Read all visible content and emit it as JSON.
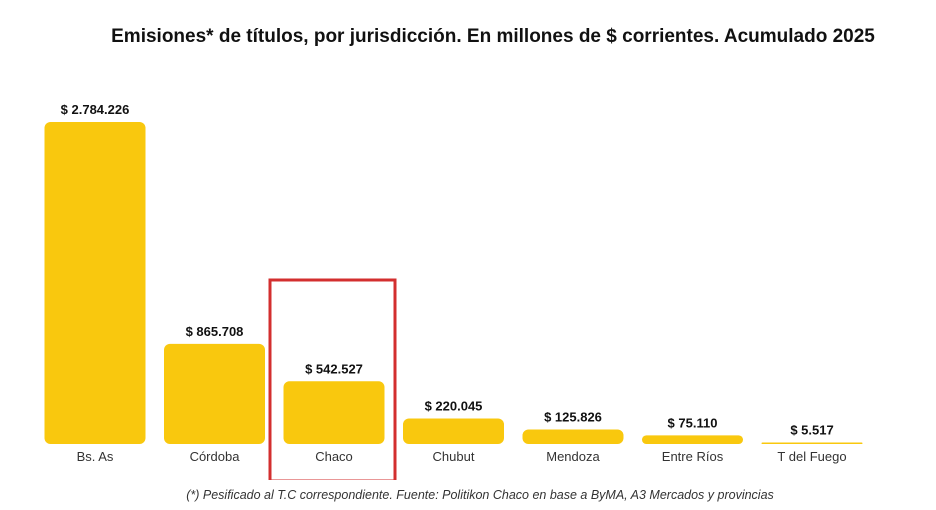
{
  "chart_data": {
    "type": "bar",
    "title": "Emisiones* de títulos, por jurisdicción. En millones de $ corrientes. Acumulado 2025",
    "xlabel": "",
    "ylabel": "",
    "categories": [
      "Bs. As",
      "Córdoba",
      "Chaco",
      "Chubut",
      "Mendoza",
      "Entre Ríos",
      "T del Fuego"
    ],
    "values": [
      2784226,
      865708,
      542527,
      220045,
      125826,
      75110,
      5517
    ],
    "value_labels": [
      "$ 2.784.226",
      "$ 865.708",
      "$ 542.527",
      "$ 220.045",
      "$ 125.826",
      "$ 75.110",
      "$ 5.517"
    ],
    "ylim": [
      0,
      2784226
    ],
    "grid": false,
    "highlighted_category": "Chaco",
    "colors": {
      "bar": "#F9C80E",
      "highlight_box": "#D32F2F"
    }
  },
  "footnote": "(*) Pesificado al T.C correspondiente. Fuente: Politikon Chaco en base a ByMA, A3 Mercados y provincias"
}
